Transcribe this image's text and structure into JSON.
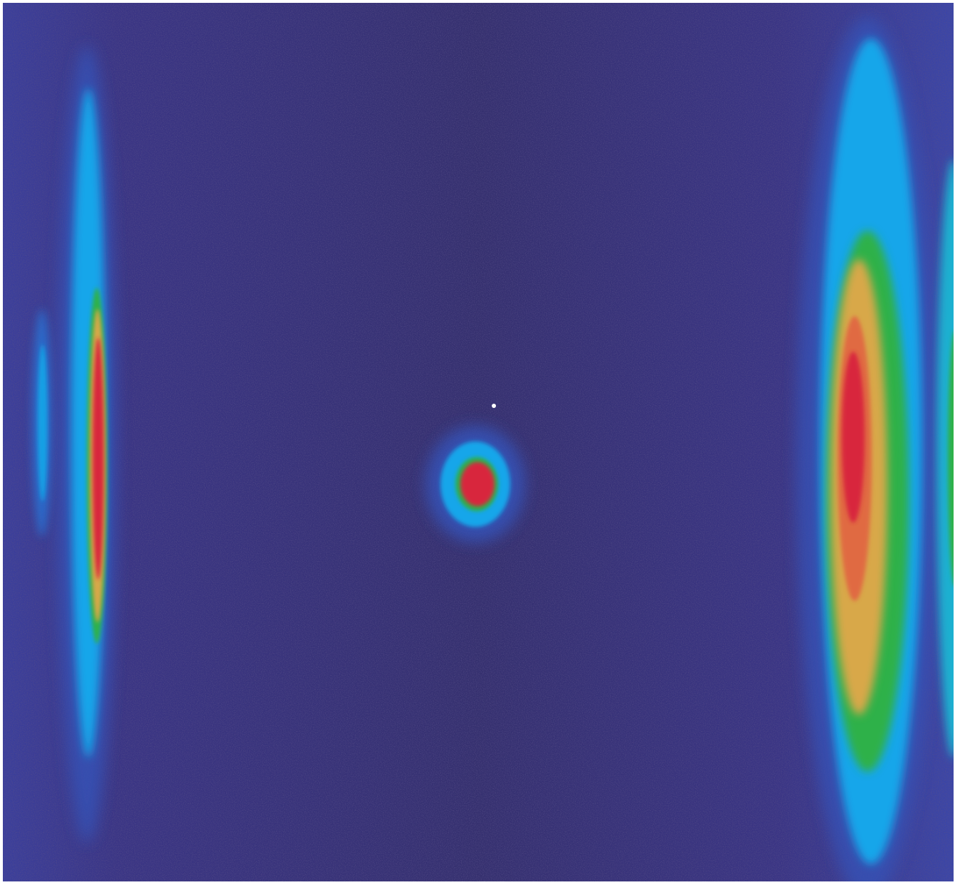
{
  "image": {
    "kind": "false-color intensity image",
    "colormap": [
      "#2f2a72",
      "#3e3784",
      "#3a4fb8",
      "#12a6ea",
      "#1dc3ec",
      "#2db14a",
      "#d8a84a",
      "#e06a43",
      "#d8283d"
    ],
    "features": [
      {
        "name": "left-streak",
        "shape": "vertical elongated ellipse",
        "peak_color": "#d8283d"
      },
      {
        "name": "left-faint-streak",
        "shape": "thin vertical line",
        "peak_color": "#12a6ea"
      },
      {
        "name": "center-spot",
        "shape": "small oval",
        "peak_color": "#d8283d"
      },
      {
        "name": "right-streak",
        "shape": "vertical elongated ellipse",
        "peak_color": "#d8283d"
      },
      {
        "name": "right-edge-sliver",
        "shape": "vertical sliver",
        "peak_color": "#1db0d0"
      }
    ]
  }
}
